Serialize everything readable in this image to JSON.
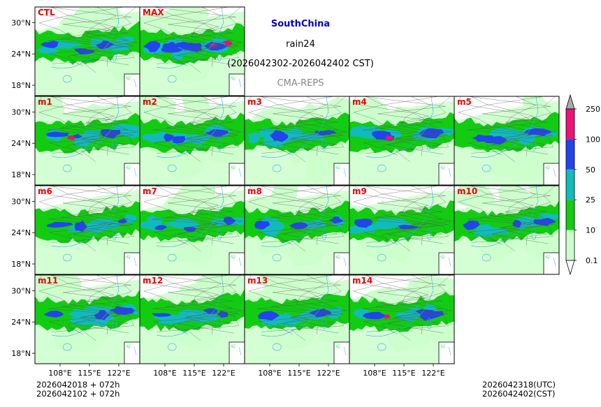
{
  "chart_data": {
    "type": "heatmap",
    "title": "SouthChina",
    "variable": "rain24",
    "period": "(2026042302-2026042402 CST)",
    "source": "CMA-REPS",
    "panels": [
      "CTL",
      "MAX",
      "m1",
      "m2",
      "m3",
      "m4",
      "m5",
      "m6",
      "m7",
      "m8",
      "m9",
      "m10",
      "m11",
      "m12",
      "m13",
      "m14"
    ],
    "yticks": [
      "30°N",
      "24°N",
      "18°N"
    ],
    "xticks": [
      "108°E",
      "115°E",
      "122°E"
    ],
    "lat_range": [
      16,
      33
    ],
    "lon_range": [
      102,
      127
    ],
    "colorbar": {
      "labels": [
        "0.1",
        "10",
        "25",
        "50",
        "100",
        "250"
      ],
      "colors": [
        "#ccffcc",
        "#11cc11",
        "#11bbbb",
        "#2244ee",
        "#ee1177"
      ],
      "extend_max_color": "#aaaaaa"
    },
    "rain_band": {
      "center_lat": [
        25.5,
        25.5,
        25.0,
        25.0,
        25.5,
        26.0,
        26.5,
        27.0
      ],
      "lon_samples": [
        102,
        106,
        110,
        114,
        118,
        122,
        125,
        127
      ]
    }
  },
  "init": {
    "line1": "2026042018  +  072h",
    "line2": "2026042102  +  072h"
  },
  "valid": {
    "utc": "2026042318(UTC)",
    "cst": "2026042402(CST)"
  },
  "colors": {
    "title": "#0000cc",
    "source": "#888888",
    "label": "#ee0000",
    "coast": "#33aaee"
  }
}
